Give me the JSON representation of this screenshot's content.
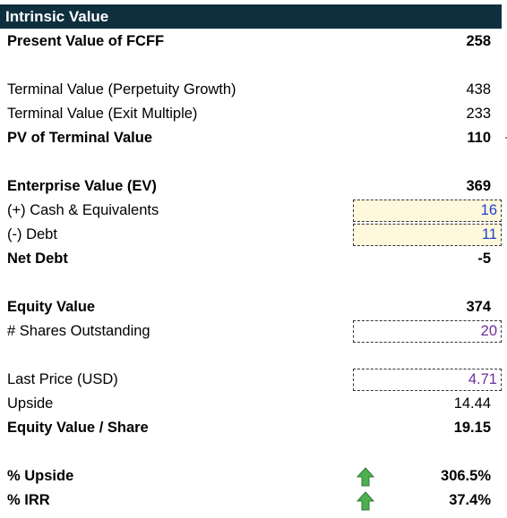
{
  "title": "Intrinsic Value",
  "rows": {
    "pv_fcff": {
      "label": "Present Value of FCFF",
      "value": "258"
    },
    "tv_perpetuity": {
      "label": "Terminal Value (Perpetuity Growth)",
      "value": "438"
    },
    "tv_exit": {
      "label": "Terminal Value (Exit Multiple)",
      "value": "233"
    },
    "pv_tv": {
      "label": "PV of Terminal Value",
      "value": "110"
    },
    "ev": {
      "label": "Enterprise Value (EV)",
      "value": "369"
    },
    "cash": {
      "label": "(+) Cash & Equivalents",
      "value": "16"
    },
    "debt": {
      "label": "(-) Debt",
      "value": "11"
    },
    "net_debt": {
      "label": "Net Debt",
      "value": "-5"
    },
    "equity_value": {
      "label": "Equity Value",
      "value": "374"
    },
    "shares": {
      "label": "# Shares Outstanding",
      "value": "20"
    },
    "last_price": {
      "label": "Last Price (USD)",
      "value": "4.71"
    },
    "upside": {
      "label": "Upside",
      "value": "14.44"
    },
    "equity_per_share": {
      "label": "Equity Value / Share",
      "value": "19.15"
    },
    "pct_upside": {
      "label": "% Upside",
      "value": "306.5%",
      "icon": "green-up-arrow-icon"
    },
    "pct_irr": {
      "label": "% IRR",
      "value": "37.4%",
      "icon": "green-up-arrow-icon"
    }
  },
  "colors": {
    "header_bg": "#0e2f3e",
    "input_fill": "#fff8dc",
    "input_blue": "#1f3fcf",
    "input_purple": "#7030a0",
    "arrow_green": "#4caf50"
  }
}
